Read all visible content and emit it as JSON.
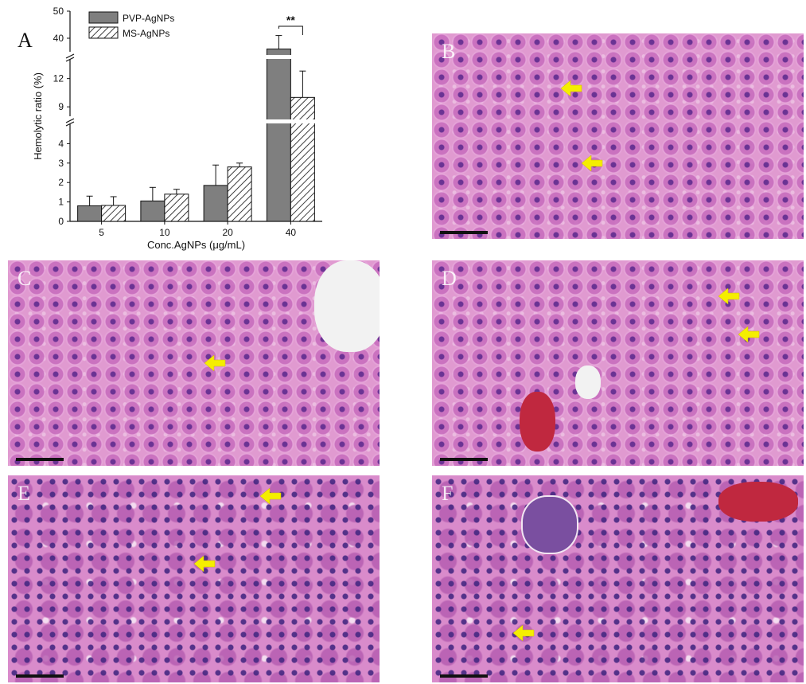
{
  "chart_data": {
    "type": "bar",
    "panel_label": "A",
    "categories": [
      "5",
      "10",
      "20",
      "40"
    ],
    "series": [
      {
        "name": "PVP-AgNPs",
        "values": [
          0.8,
          1.05,
          1.85,
          36
        ],
        "errors": [
          0.5,
          0.7,
          1.05,
          5
        ],
        "color": "#7f7f7f",
        "pattern": "solid"
      },
      {
        "name": "MS-AgNPs",
        "values": [
          0.82,
          1.4,
          2.8,
          10
        ],
        "errors": [
          0.45,
          0.25,
          0.2,
          2.8
        ],
        "color": "#ffffff",
        "pattern": "hatched"
      }
    ],
    "xlabel": "Conc.AgNPs (μg/mL)",
    "ylabel": "Hemolytic ratio (%)",
    "y_axis_segments": [
      {
        "range": [
          0,
          5
        ],
        "ticks": [
          "0",
          "1",
          "2",
          "3",
          "4"
        ]
      },
      {
        "range": [
          8,
          14
        ],
        "ticks": [
          "9",
          "12"
        ]
      },
      {
        "range": [
          35,
          50
        ],
        "ticks": [
          "40",
          "50"
        ]
      }
    ],
    "annotation": "**",
    "legend_position": "top-left"
  },
  "histology_panels": [
    {
      "label": "B",
      "tissue": "liver",
      "arrows": 2
    },
    {
      "label": "C",
      "tissue": "liver",
      "arrows": 1
    },
    {
      "label": "D",
      "tissue": "liver",
      "arrows": 2
    },
    {
      "label": "E",
      "tissue": "kidney",
      "arrows": 2
    },
    {
      "label": "F",
      "tissue": "kidney",
      "arrows": 1
    }
  ],
  "colors": {
    "arrow": "#f5ee00",
    "stain": "#e09ad0",
    "nucleus": "#5a288c"
  }
}
